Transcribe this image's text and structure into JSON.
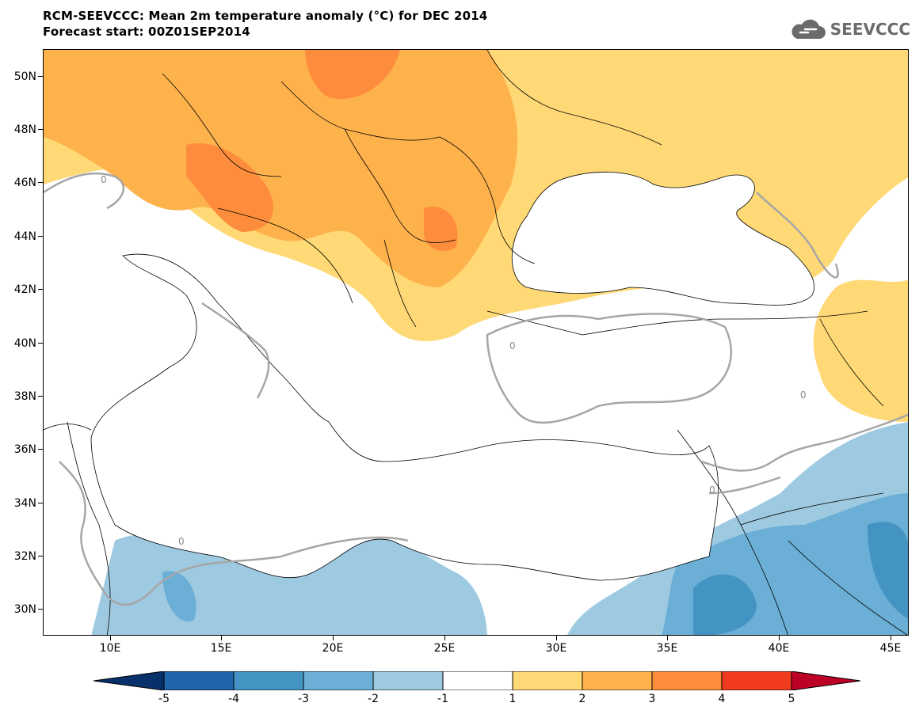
{
  "title": {
    "line1": "RCM-SEEVCCC: Mean 2m temperature anomaly (°C) for DEC 2014",
    "line2": "Forecast start: 00Z01SEP2014"
  },
  "logo": {
    "text": "SEEVCCC",
    "icon": "cloud-icon"
  },
  "map": {
    "y_axis_labels": [
      "50N",
      "48N",
      "46N",
      "44N",
      "42N",
      "40N",
      "38N",
      "36N",
      "34N",
      "32N",
      "30N"
    ],
    "x_axis_labels": [
      "10E",
      "15E",
      "20E",
      "25E",
      "30E",
      "35E",
      "40E",
      "45E"
    ],
    "contour_label": "0"
  },
  "colorbar": {
    "labels": [
      "-5",
      "-4",
      "-3",
      "-2",
      "-1",
      "1",
      "2",
      "3",
      "4",
      "5"
    ],
    "colors": [
      "#08306b",
      "#2166ac",
      "#4393c3",
      "#6baed6",
      "#9ecae1",
      "#ffffff",
      "#fed976",
      "#feb24c",
      "#fd8d3c",
      "#f03b20",
      "#bd0026"
    ]
  }
}
